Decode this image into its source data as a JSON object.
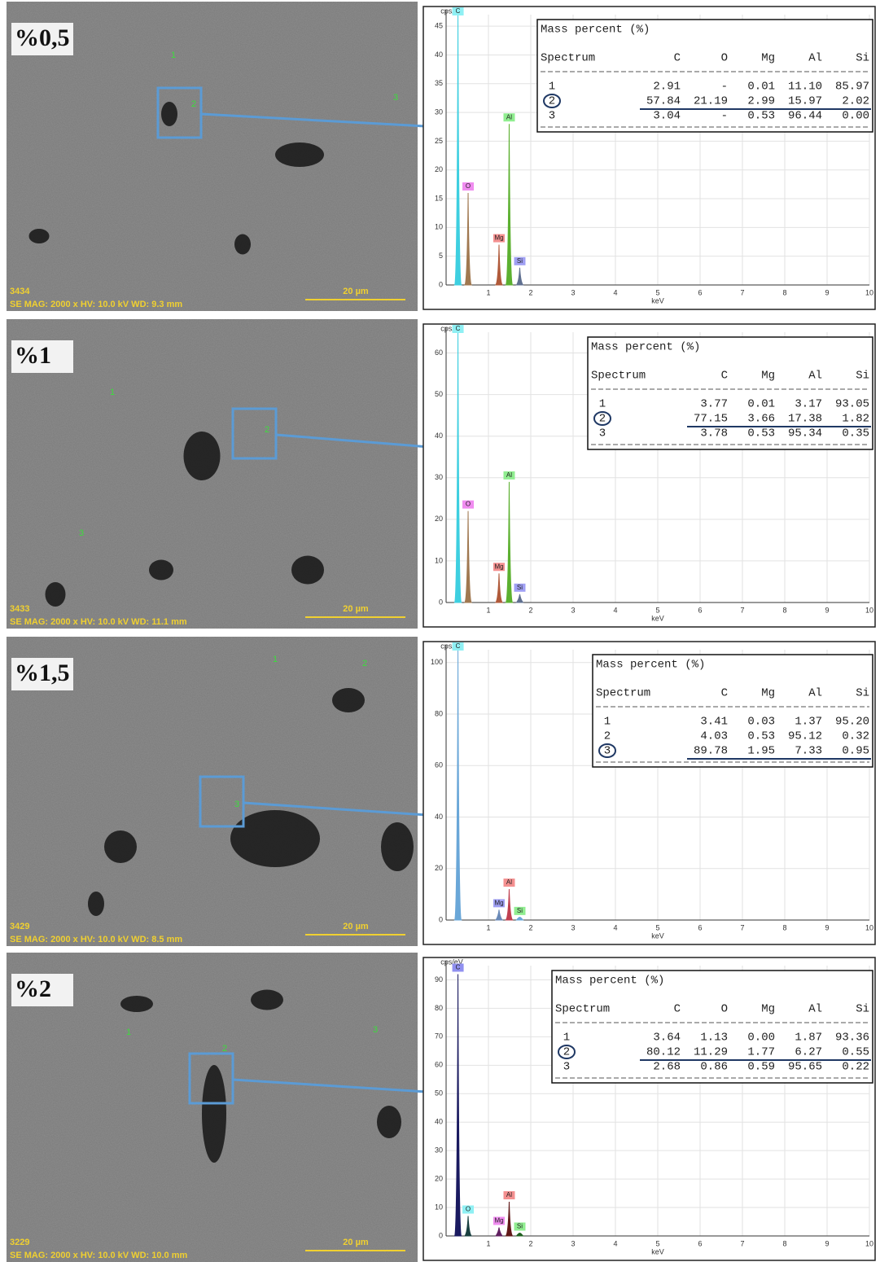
{
  "panels": [
    {
      "label": "%0,5",
      "image": {
        "id": "3434",
        "info": "SE MAG: 2000 x HV: 10.0 kV WD: 9.3 mm",
        "scale": "20 µm",
        "spots": [
          "1",
          "2",
          "3"
        ]
      },
      "table": {
        "title": "Mass percent (%)",
        "header": [
          "Spectrum",
          "C",
          "O",
          "Mg",
          "Al",
          "Si"
        ],
        "rows": [
          [
            "1",
            "2.91",
            "-",
            "0.01",
            "11.10",
            "85.97"
          ],
          [
            "2",
            "57.84",
            "21.19",
            "2.99",
            "15.97",
            "2.02"
          ],
          [
            "3",
            "3.04",
            "-",
            "0.53",
            "96.44",
            "0.00"
          ]
        ],
        "marked_row": 1
      }
    },
    {
      "label": "%1",
      "image": {
        "id": "3433",
        "info": "SE MAG: 2000 x HV: 10.0 kV WD: 11.1 mm",
        "scale": "20 µm",
        "spots": [
          "1",
          "2",
          "3"
        ]
      },
      "table": {
        "title": "Mass percent (%)",
        "header": [
          "Spectrum",
          "C",
          "Mg",
          "Al",
          "Si"
        ],
        "rows": [
          [
            "1",
            "3.77",
            "0.01",
            "3.17",
            "93.05"
          ],
          [
            "2",
            "77.15",
            "3.66",
            "17.38",
            "1.82"
          ],
          [
            "3",
            "3.78",
            "0.53",
            "95.34",
            "0.35"
          ]
        ],
        "marked_row": 1
      }
    },
    {
      "label": "%1,5",
      "image": {
        "id": "3429",
        "info": "SE MAG: 2000 x HV: 10.0 kV WD: 8.5 mm",
        "scale": "20 µm",
        "spots": [
          "1",
          "2",
          "3"
        ]
      },
      "table": {
        "title": "Mass percent (%)",
        "header": [
          "Spectrum",
          "C",
          "Mg",
          "Al",
          "Si"
        ],
        "rows": [
          [
            "1",
            "3.41",
            "0.03",
            "1.37",
            "95.20"
          ],
          [
            "2",
            "4.03",
            "0.53",
            "95.12",
            "0.32"
          ],
          [
            "3",
            "89.78",
            "1.95",
            "7.33",
            "0.95"
          ]
        ],
        "marked_row": 2
      }
    },
    {
      "label": "%2",
      "image": {
        "id": "3229",
        "info": "SE MAG: 2000 x HV: 10.0 kV WD: 10.0 mm",
        "scale": "20 µm",
        "spots": [
          "1",
          "2",
          "3"
        ]
      },
      "table": {
        "title": "Mass percent (%)",
        "header": [
          "Spectrum",
          "C",
          "O",
          "Mg",
          "Al",
          "Si"
        ],
        "rows": [
          [
            "1",
            "3.64",
            "1.13",
            "0.00",
            "1.87",
            "93.36"
          ],
          [
            "2",
            "80.12",
            "11.29",
            "1.77",
            "6.27",
            "0.55"
          ],
          [
            "3",
            "2.68",
            "0.86",
            "0.59",
            "95.65",
            "0.22"
          ]
        ],
        "marked_row": 1
      }
    }
  ],
  "chart_data": [
    {
      "type": "spectrum",
      "y_label": "cps/eV",
      "x_label": "keV",
      "xlim": [
        0,
        10
      ],
      "xticks": [
        1,
        2,
        3,
        4,
        5,
        6,
        7,
        8,
        9,
        10
      ],
      "ylim": [
        0,
        47
      ],
      "yticks": [
        0,
        5,
        10,
        15,
        20,
        25,
        30,
        35,
        40,
        45
      ],
      "grid": true,
      "peaks": [
        {
          "name": "C",
          "x": 0.28,
          "value": 47,
          "color": "#3ecfe0",
          "tag_color": "#8ff0f4"
        },
        {
          "name": "O",
          "x": 0.52,
          "value": 16,
          "color": "#a07850",
          "tag_color": "#f08cf0"
        },
        {
          "name": "Mg",
          "x": 1.25,
          "value": 7,
          "color": "#b05a3a",
          "tag_color": "#f49090"
        },
        {
          "name": "Al",
          "x": 1.49,
          "value": 28,
          "color": "#5cb030",
          "tag_color": "#90ee90"
        },
        {
          "name": "Si",
          "x": 1.74,
          "value": 3,
          "color": "#607090",
          "tag_color": "#a0a0f4"
        }
      ]
    },
    {
      "type": "spectrum",
      "y_label": "cps/eV",
      "x_label": "keV",
      "xlim": [
        0,
        10
      ],
      "xticks": [
        1,
        2,
        3,
        4,
        5,
        6,
        7,
        8,
        9,
        10
      ],
      "ylim": [
        0,
        65
      ],
      "yticks": [
        0,
        10,
        20,
        30,
        40,
        50,
        60
      ],
      "grid": true,
      "peaks": [
        {
          "name": "C",
          "x": 0.28,
          "value": 65,
          "color": "#3ecfe0",
          "tag_color": "#8ff0f4"
        },
        {
          "name": "O",
          "x": 0.52,
          "value": 22,
          "color": "#a07850",
          "tag_color": "#f08cf0"
        },
        {
          "name": "Mg",
          "x": 1.25,
          "value": 7,
          "color": "#b05a3a",
          "tag_color": "#f49090"
        },
        {
          "name": "Al",
          "x": 1.49,
          "value": 29,
          "color": "#5cb030",
          "tag_color": "#90ee90"
        },
        {
          "name": "Si",
          "x": 1.74,
          "value": 2,
          "color": "#607090",
          "tag_color": "#a0a0f4"
        }
      ]
    },
    {
      "type": "spectrum",
      "y_label": "cps/eV",
      "x_label": "keV",
      "xlim": [
        0,
        10
      ],
      "xticks": [
        1,
        2,
        3,
        4,
        5,
        6,
        7,
        8,
        9,
        10
      ],
      "ylim": [
        0,
        105
      ],
      "yticks": [
        0,
        20,
        40,
        60,
        80,
        100
      ],
      "grid": true,
      "peaks": [
        {
          "name": "C",
          "x": 0.28,
          "value": 105,
          "color": "#6aa7d8",
          "tag_color": "#8ff0f4"
        },
        {
          "name": "Mg",
          "x": 1.25,
          "value": 4,
          "color": "#6a8ab8",
          "tag_color": "#a0a0f4"
        },
        {
          "name": "Al",
          "x": 1.49,
          "value": 12,
          "color": "#c04050",
          "tag_color": "#f49090"
        },
        {
          "name": "Si",
          "x": 1.74,
          "value": 1,
          "color": "#6aa7d8",
          "tag_color": "#90ee90"
        }
      ]
    },
    {
      "type": "spectrum",
      "y_label": "cps/eV",
      "x_label": "keV",
      "xlim": [
        0,
        10
      ],
      "xticks": [
        1,
        2,
        3,
        4,
        5,
        6,
        7,
        8,
        9,
        10
      ],
      "ylim": [
        0,
        95
      ],
      "yticks": [
        0,
        10,
        20,
        30,
        40,
        50,
        60,
        70,
        80,
        90
      ],
      "grid": true,
      "peaks": [
        {
          "name": "C",
          "x": 0.28,
          "value": 92,
          "color": "#1a1a60",
          "tag_color": "#9090f0"
        },
        {
          "name": "O",
          "x": 0.52,
          "value": 7,
          "color": "#1a4040",
          "tag_color": "#8ff0f4"
        },
        {
          "name": "Mg",
          "x": 1.25,
          "value": 3,
          "color": "#602060",
          "tag_color": "#f08cf0"
        },
        {
          "name": "Al",
          "x": 1.49,
          "value": 12,
          "color": "#601818",
          "tag_color": "#f49090"
        },
        {
          "name": "Si",
          "x": 1.74,
          "value": 1,
          "color": "#206020",
          "tag_color": "#90ee90"
        }
      ]
    }
  ]
}
